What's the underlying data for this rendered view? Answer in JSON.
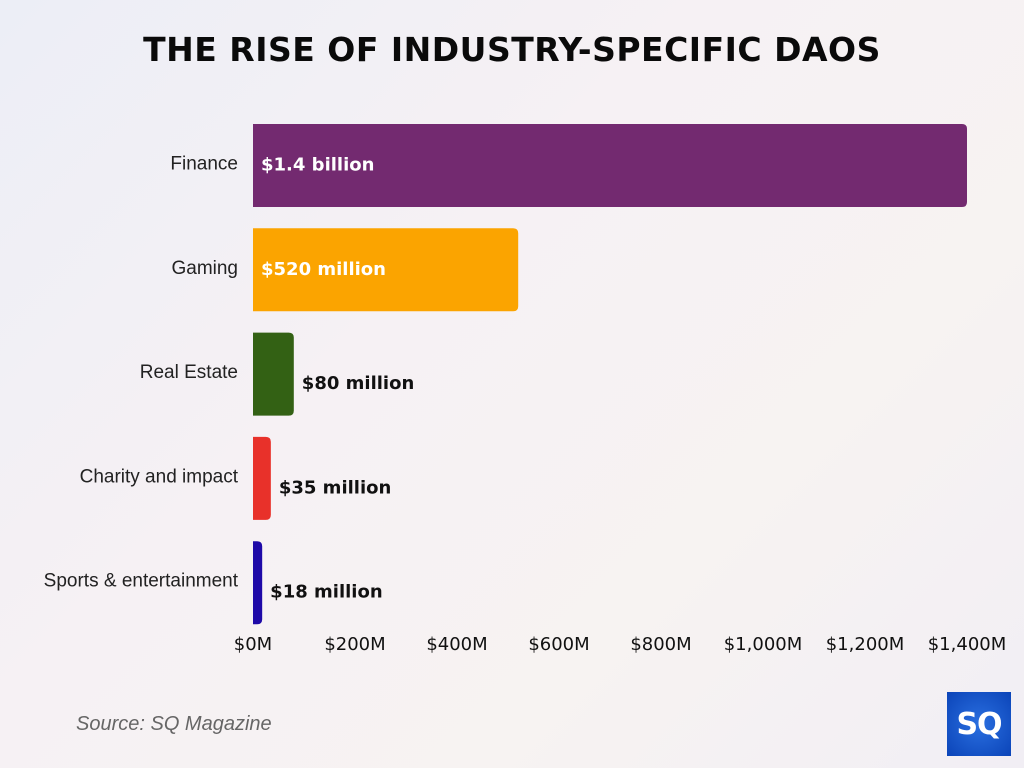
{
  "chart_data": {
    "type": "bar",
    "orientation": "horizontal",
    "title": "THE RISE OF INDUSTRY-SPECIFIC DAOS",
    "categories": [
      "Finance",
      "Gaming",
      "Real Estate",
      "Charity and impact",
      "Sports & entertainment"
    ],
    "values": [
      1400,
      520,
      80,
      35,
      18
    ],
    "unit": "million USD",
    "data_labels": [
      "$1.4 billion",
      "$520 million",
      "$80 million",
      "$35 million",
      "$18 million"
    ],
    "colors": [
      "#732a70",
      "#fba400",
      "#336114",
      "#e8312a",
      "#1e0aa8"
    ],
    "label_inside": [
      true,
      true,
      false,
      false,
      false
    ],
    "xlim": [
      0,
      1400
    ],
    "xticks": [
      0,
      200,
      400,
      600,
      800,
      1000,
      1200,
      1400
    ],
    "xtick_labels": [
      "$0M",
      "$200M",
      "$400M",
      "$600M",
      "$800M",
      "$1,000M",
      "$1,200M",
      "$1,400M"
    ],
    "grid": false,
    "xlabel": "",
    "ylabel": ""
  },
  "source": "Source: SQ Magazine",
  "logo_text": "SQ"
}
